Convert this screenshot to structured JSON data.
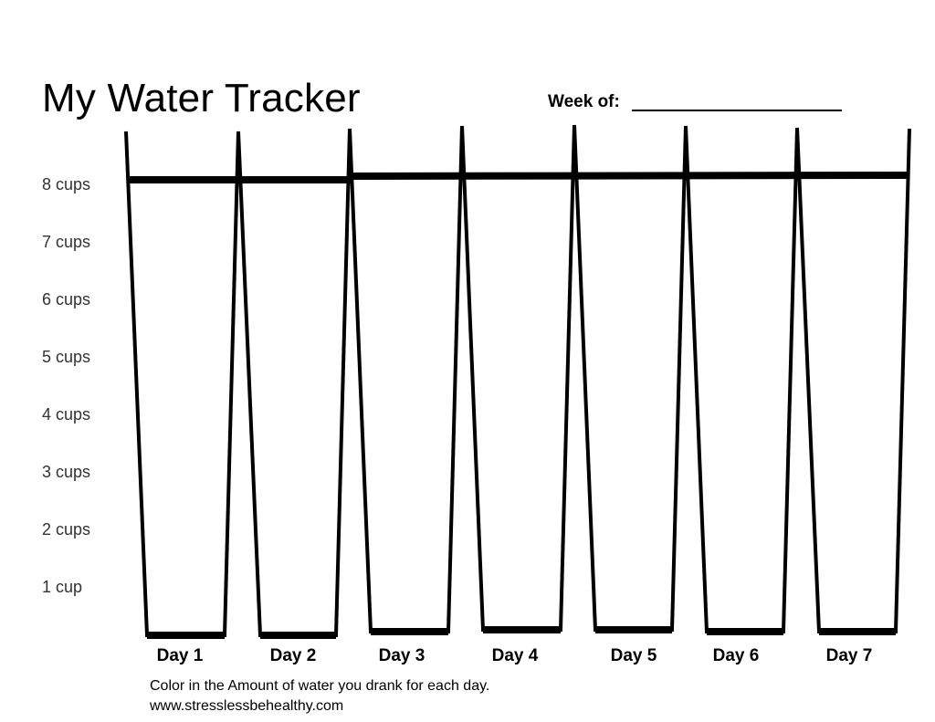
{
  "header": {
    "title": "My Water Tracker",
    "week_label": "Week of:"
  },
  "scale": {
    "labels": [
      "8 cups",
      "7 cups",
      "6 cups",
      "5 cups",
      "4 cups",
      "3 cups",
      "2 cups",
      "1 cup"
    ]
  },
  "days": [
    "Day 1",
    "Day 2",
    "Day 3",
    "Day 4",
    "Day 5",
    "Day 6",
    "Day 7"
  ],
  "footer": {
    "instruction": "Color in the Amount of water you drank for each day.",
    "website": "www.stresslessbehealthy.com"
  }
}
